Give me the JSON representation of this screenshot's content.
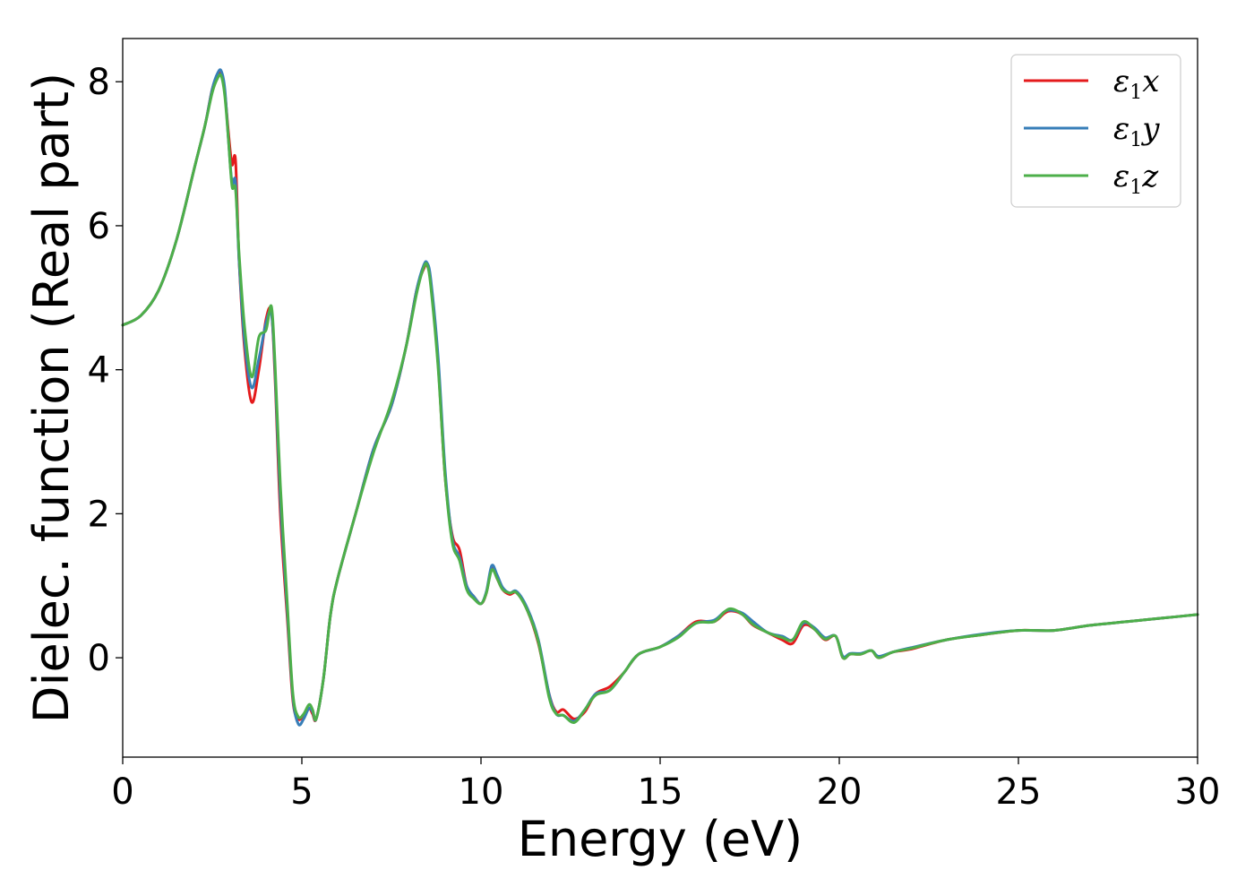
{
  "chart_data": {
    "type": "line",
    "title": "",
    "xlabel": "Energy (eV)",
    "ylabel": "Dielec. function (Real part)",
    "xlim": [
      0,
      30
    ],
    "ylim": [
      -1.38,
      8.6
    ],
    "xticks": [
      0,
      5,
      10,
      15,
      20,
      25,
      30
    ],
    "yticks": [
      0,
      2,
      4,
      6,
      8
    ],
    "grid": false,
    "legend_position": "top-right",
    "series": [
      {
        "name": "ε₁x",
        "legend_base": "ε",
        "legend_sub": "1",
        "legend_suffix": "x",
        "color": "#e41a1c",
        "x": [
          0,
          0.5,
          1,
          1.5,
          2,
          2.3,
          2.5,
          2.65,
          2.75,
          2.85,
          2.95,
          3.05,
          3.15,
          3.25,
          3.4,
          3.6,
          3.8,
          4.0,
          4.15,
          4.25,
          4.4,
          4.6,
          4.75,
          4.9,
          5.05,
          5.2,
          5.3,
          5.4,
          5.6,
          5.8,
          6.0,
          6.5,
          7.0,
          7.5,
          7.9,
          8.2,
          8.4,
          8.5,
          8.6,
          8.8,
          9.0,
          9.2,
          9.4,
          9.6,
          9.8,
          10.0,
          10.15,
          10.3,
          10.45,
          10.6,
          10.8,
          11.0,
          11.3,
          11.6,
          11.9,
          12.1,
          12.3,
          12.6,
          12.9,
          13.2,
          13.6,
          14.0,
          14.4,
          15.0,
          15.5,
          16.0,
          16.5,
          16.8,
          17.0,
          17.3,
          17.6,
          18.0,
          18.4,
          18.7,
          19.0,
          19.3,
          19.6,
          19.9,
          20.1,
          20.3,
          20.6,
          20.9,
          21.1,
          21.5,
          22,
          23,
          24,
          25,
          26,
          27,
          28,
          29,
          30
        ],
        "y": [
          4.62,
          4.75,
          5.1,
          5.8,
          6.8,
          7.4,
          7.9,
          8.08,
          8.1,
          7.85,
          7.3,
          6.85,
          6.9,
          5.5,
          4.3,
          3.55,
          4.0,
          4.7,
          4.8,
          3.9,
          2.0,
          0.5,
          -0.6,
          -0.85,
          -0.8,
          -0.7,
          -0.78,
          -0.85,
          -0.3,
          0.6,
          1.1,
          2.0,
          2.9,
          3.5,
          4.3,
          5.1,
          5.4,
          5.45,
          5.2,
          4.1,
          2.5,
          1.7,
          1.5,
          1.0,
          0.85,
          0.75,
          0.9,
          1.25,
          1.1,
          0.95,
          0.88,
          0.9,
          0.65,
          0.2,
          -0.5,
          -0.75,
          -0.72,
          -0.85,
          -0.75,
          -0.5,
          -0.4,
          -0.2,
          0.05,
          0.15,
          0.3,
          0.5,
          0.5,
          0.62,
          0.65,
          0.6,
          0.45,
          0.35,
          0.25,
          0.2,
          0.45,
          0.4,
          0.25,
          0.3,
          0.0,
          0.05,
          0.05,
          0.1,
          0.0,
          0.08,
          0.12,
          0.25,
          0.32,
          0.38,
          0.38,
          0.45,
          0.5,
          0.55,
          0.6
        ]
      },
      {
        "name": "ε₁y",
        "legend_base": "ε",
        "legend_sub": "1",
        "legend_suffix": "y",
        "color": "#377eb8",
        "x": [
          0,
          0.5,
          1,
          1.5,
          2,
          2.3,
          2.5,
          2.65,
          2.75,
          2.85,
          2.95,
          3.05,
          3.15,
          3.25,
          3.4,
          3.6,
          3.8,
          4.0,
          4.15,
          4.25,
          4.4,
          4.6,
          4.75,
          4.9,
          5.05,
          5.2,
          5.3,
          5.4,
          5.6,
          5.8,
          6.0,
          6.5,
          7.0,
          7.5,
          7.9,
          8.2,
          8.4,
          8.5,
          8.6,
          8.8,
          9.0,
          9.2,
          9.4,
          9.6,
          9.8,
          10.0,
          10.15,
          10.3,
          10.45,
          10.6,
          10.8,
          11.0,
          11.3,
          11.6,
          11.9,
          12.1,
          12.3,
          12.6,
          12.9,
          13.2,
          13.6,
          14.0,
          14.4,
          15.0,
          15.5,
          16.0,
          16.5,
          16.8,
          17.0,
          17.3,
          17.6,
          18.0,
          18.4,
          18.7,
          19.0,
          19.3,
          19.6,
          19.9,
          20.1,
          20.3,
          20.6,
          20.9,
          21.1,
          21.5,
          22,
          23,
          24,
          25,
          26,
          27,
          28,
          29,
          30
        ],
        "y": [
          4.62,
          4.75,
          5.1,
          5.8,
          6.8,
          7.4,
          7.9,
          8.12,
          8.15,
          7.9,
          7.2,
          6.6,
          6.6,
          5.5,
          4.4,
          3.75,
          4.15,
          4.65,
          4.78,
          4.0,
          2.2,
          0.6,
          -0.55,
          -0.92,
          -0.85,
          -0.7,
          -0.75,
          -0.85,
          -0.3,
          0.6,
          1.1,
          2.0,
          2.9,
          3.5,
          4.3,
          5.1,
          5.45,
          5.48,
          5.25,
          4.2,
          2.6,
          1.65,
          1.4,
          1.0,
          0.85,
          0.75,
          0.92,
          1.28,
          1.15,
          0.98,
          0.9,
          0.92,
          0.68,
          0.25,
          -0.5,
          -0.78,
          -0.8,
          -0.88,
          -0.72,
          -0.5,
          -0.45,
          -0.2,
          0.05,
          0.15,
          0.3,
          0.48,
          0.52,
          0.64,
          0.66,
          0.62,
          0.5,
          0.35,
          0.3,
          0.25,
          0.48,
          0.42,
          0.28,
          0.3,
          0.02,
          0.06,
          0.06,
          0.1,
          0.02,
          0.08,
          0.14,
          0.25,
          0.33,
          0.38,
          0.38,
          0.45,
          0.5,
          0.55,
          0.6
        ]
      },
      {
        "name": "ε₁z",
        "legend_base": "ε",
        "legend_sub": "1",
        "legend_suffix": "z",
        "color": "#4daf4a",
        "x": [
          0,
          0.5,
          1,
          1.5,
          2,
          2.3,
          2.5,
          2.65,
          2.75,
          2.85,
          2.95,
          3.05,
          3.15,
          3.25,
          3.4,
          3.6,
          3.8,
          4.0,
          4.15,
          4.25,
          4.4,
          4.6,
          4.75,
          4.9,
          5.05,
          5.2,
          5.3,
          5.4,
          5.6,
          5.8,
          6.0,
          6.5,
          7.0,
          7.5,
          7.9,
          8.2,
          8.4,
          8.5,
          8.6,
          8.8,
          9.0,
          9.2,
          9.4,
          9.6,
          9.8,
          10.0,
          10.15,
          10.3,
          10.45,
          10.6,
          10.8,
          11.0,
          11.3,
          11.6,
          11.9,
          12.1,
          12.3,
          12.6,
          12.9,
          13.2,
          13.6,
          14.0,
          14.4,
          15.0,
          15.5,
          16.0,
          16.5,
          16.8,
          17.0,
          17.3,
          17.6,
          18.0,
          18.4,
          18.7,
          19.0,
          19.3,
          19.6,
          19.9,
          20.1,
          20.3,
          20.6,
          20.9,
          21.1,
          21.5,
          22,
          23,
          24,
          25,
          26,
          27,
          28,
          29,
          30
        ],
        "y": [
          4.62,
          4.75,
          5.1,
          5.8,
          6.8,
          7.4,
          7.85,
          8.05,
          8.08,
          7.8,
          7.2,
          6.55,
          6.5,
          5.6,
          4.6,
          3.9,
          4.45,
          4.55,
          4.88,
          4.1,
          2.4,
          0.7,
          -0.5,
          -0.82,
          -0.78,
          -0.65,
          -0.72,
          -0.85,
          -0.3,
          0.6,
          1.1,
          2.0,
          2.85,
          3.55,
          4.3,
          5.05,
          5.42,
          5.45,
          5.15,
          4.05,
          2.5,
          1.6,
          1.35,
          0.95,
          0.82,
          0.75,
          0.9,
          1.22,
          1.1,
          0.95,
          0.9,
          0.9,
          0.65,
          0.22,
          -0.55,
          -0.78,
          -0.8,
          -0.9,
          -0.72,
          -0.52,
          -0.45,
          -0.2,
          0.05,
          0.15,
          0.28,
          0.48,
          0.5,
          0.64,
          0.68,
          0.6,
          0.46,
          0.35,
          0.28,
          0.25,
          0.5,
          0.4,
          0.26,
          0.3,
          0.0,
          0.05,
          0.05,
          0.1,
          0.0,
          0.08,
          0.13,
          0.25,
          0.32,
          0.38,
          0.38,
          0.45,
          0.5,
          0.55,
          0.6
        ]
      }
    ]
  }
}
